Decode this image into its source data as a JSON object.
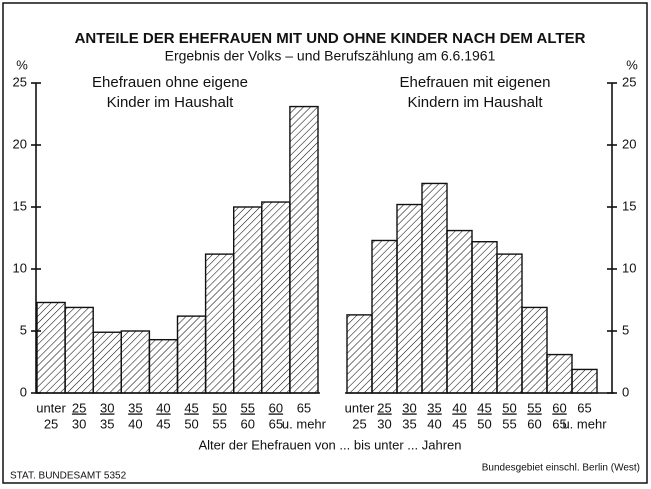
{
  "title": "ANTEILE DER EHEFRAUEN MIT UND OHNE KINDER NACH DEM ALTER",
  "subtitle": "Ergebnis der Volks – und Berufszählung am 6.6.1961",
  "xlabel": "Alter der Ehefrauen von ... bis unter ... Jahren",
  "source": "STAT. BUNDESAMT 5352",
  "note": "Bundesgebiet einschl. Berlin (West)",
  "chart_data": [
    {
      "type": "bar",
      "title": [
        "Ehefrauen ohne eigene",
        "Kinder im Haushalt"
      ],
      "ylabel": "%",
      "axis_side": "left",
      "color": "#111111",
      "categories": [
        [
          "unter",
          "25"
        ],
        [
          "25",
          "30"
        ],
        [
          "30",
          "35"
        ],
        [
          "35",
          "40"
        ],
        [
          "40",
          "45"
        ],
        [
          "45",
          "50"
        ],
        [
          "50",
          "55"
        ],
        [
          "55",
          "60"
        ],
        [
          "60",
          "65"
        ],
        [
          "65",
          "u. mehr"
        ]
      ],
      "values": [
        7.3,
        6.9,
        4.9,
        5.0,
        4.3,
        6.2,
        11.2,
        15.0,
        15.4,
        23.1
      ],
      "ylim": [
        0,
        25
      ],
      "yticks": [
        0,
        5,
        10,
        15,
        20,
        25
      ]
    },
    {
      "type": "bar",
      "title": [
        "Ehefrauen mit eigenen",
        "Kindern im Haushalt"
      ],
      "ylabel": "%",
      "axis_side": "right",
      "color": "#111111",
      "categories": [
        [
          "unter",
          "25"
        ],
        [
          "25",
          "30"
        ],
        [
          "30",
          "35"
        ],
        [
          "35",
          "40"
        ],
        [
          "40",
          "45"
        ],
        [
          "45",
          "50"
        ],
        [
          "50",
          "55"
        ],
        [
          "55",
          "60"
        ],
        [
          "60",
          "65"
        ],
        [
          "65",
          "u. mehr"
        ]
      ],
      "values": [
        6.3,
        12.3,
        15.2,
        16.9,
        13.1,
        12.2,
        11.2,
        6.9,
        3.1,
        1.9
      ],
      "ylim": [
        0,
        25
      ],
      "yticks": [
        0,
        5,
        10,
        15,
        20,
        25
      ]
    }
  ]
}
